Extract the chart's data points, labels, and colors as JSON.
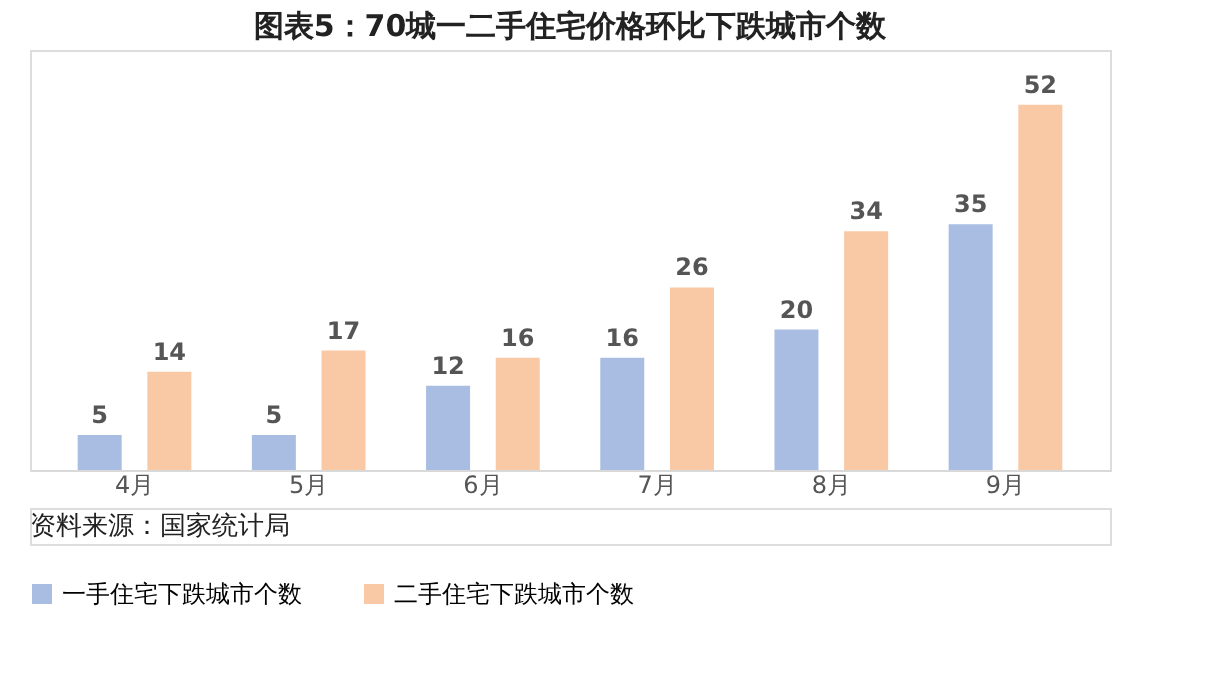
{
  "chart_data": {
    "type": "bar",
    "title": "图表5：70城一二手住宅价格环比下跌城市个数",
    "categories": [
      "4月",
      "5月",
      "6月",
      "7月",
      "8月",
      "9月"
    ],
    "series": [
      {
        "name": "一手住宅下跌城市个数",
        "color": "#a9bde3",
        "values": [
          5,
          5,
          12,
          16,
          20,
          35
        ]
      },
      {
        "name": "二手住宅下跌城市个数",
        "color": "#f9c8a5",
        "values": [
          14,
          17,
          16,
          26,
          34,
          52
        ]
      }
    ],
    "data_labels": true,
    "legend": "bottom",
    "grid": false,
    "annotations": [
      "资料来源：国家统计局"
    ]
  }
}
